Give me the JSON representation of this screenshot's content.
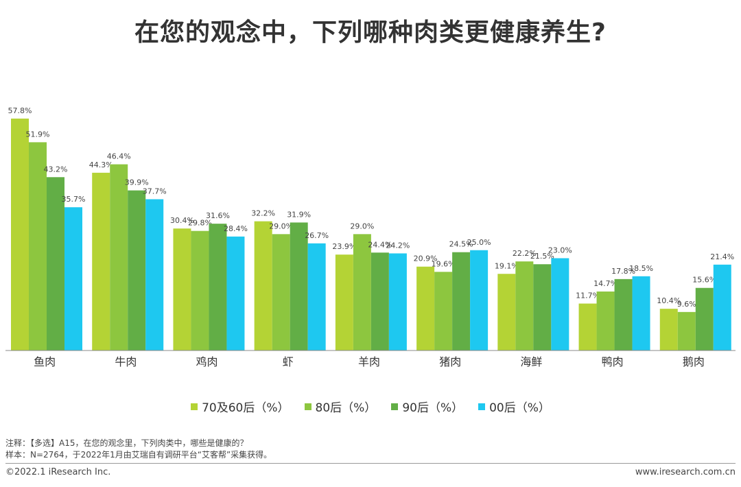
{
  "header": {
    "title": "在您的观念中，下列哪种肉类更健康养生?"
  },
  "chart_data": {
    "type": "bar",
    "categories": [
      "鱼肉",
      "牛肉",
      "鸡肉",
      "虾",
      "羊肉",
      "猪肉",
      "海鲜",
      "鸭肉",
      "鹅肉"
    ],
    "series": [
      {
        "name": "70及60后（%）",
        "color": "#b4d335",
        "values": [
          57.8,
          44.3,
          30.4,
          32.2,
          23.9,
          20.9,
          19.1,
          11.7,
          10.4
        ]
      },
      {
        "name": "80后（%）",
        "color": "#8dc63f",
        "values": [
          51.9,
          46.4,
          29.8,
          29.0,
          29.0,
          19.6,
          22.2,
          14.7,
          9.6
        ]
      },
      {
        "name": "90后（%）",
        "color": "#62ae46",
        "values": [
          43.2,
          39.9,
          31.6,
          31.9,
          24.4,
          24.5,
          21.5,
          17.8,
          15.6
        ]
      },
      {
        "name": "00后（%）",
        "color": "#1ec8f0",
        "values": [
          35.7,
          37.7,
          28.4,
          26.7,
          24.2,
          25.0,
          23.0,
          18.5,
          21.4
        ]
      }
    ],
    "legend_position": "bottom",
    "grid": false
  },
  "notes": {
    "line1": "注释：【多选】A15，在您的观念里，下列肉类中，哪些是健康的？",
    "line2": "样本：N=2764，于2022年1月由艾瑞自有调研平台“艾客帮”采集获得。"
  },
  "footer": {
    "copyright": "©2022.1 iResearch Inc.",
    "website": "www.iresearch.com.cn"
  }
}
